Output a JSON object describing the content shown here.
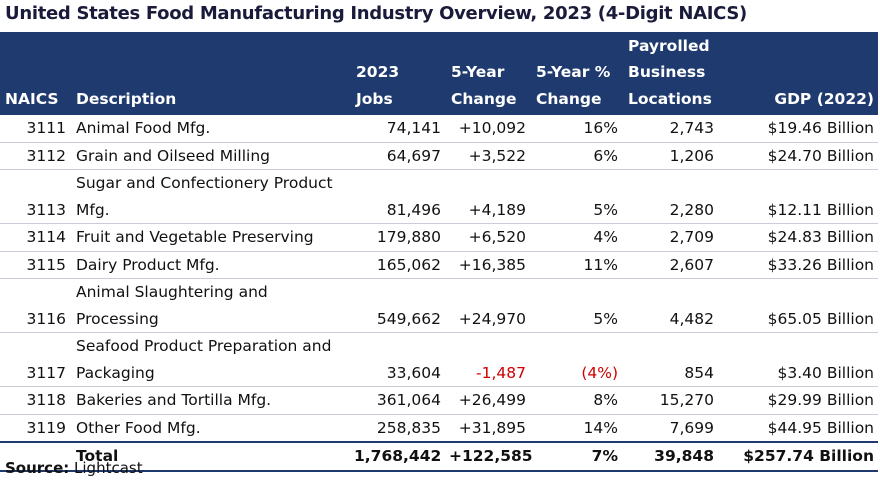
{
  "title": "United States Food Manufacturing Industry Overview, 2023 (4-Digit NAICS)",
  "table": {
    "columns": [
      "NAICS",
      "Description",
      "2023 Jobs",
      "5-Year Change",
      "5-Year % Change",
      "Payrolled Business Locations",
      "GDP (2022)"
    ],
    "rows": [
      [
        "3111",
        "Animal Food Mfg.",
        "74,141",
        "+10,092",
        "16%",
        "2,743",
        "$19.46 Billion"
      ],
      [
        "3112",
        "Grain and Oilseed Milling",
        "64,697",
        "+3,522",
        "6%",
        "1,206",
        "$24.70 Billion"
      ],
      [
        "3113",
        "Sugar and Confectionery Product Mfg.",
        "81,496",
        "+4,189",
        "5%",
        "2,280",
        "$12.11 Billion"
      ],
      [
        "3114",
        "Fruit and Vegetable Preserving",
        "179,880",
        "+6,520",
        "4%",
        "2,709",
        "$24.83 Billion"
      ],
      [
        "3115",
        "Dairy Product Mfg.",
        "165,062",
        "+16,385",
        "11%",
        "2,607",
        "$33.26 Billion"
      ],
      [
        "3116",
        "Animal Slaughtering and Processing",
        "549,662",
        "+24,970",
        "5%",
        "4,482",
        "$65.05 Billion"
      ],
      [
        "3117",
        "Seafood Product Preparation and Packaging",
        "33,604",
        "-1,487",
        "(4%)",
        "854",
        "$3.40 Billion"
      ],
      [
        "3118",
        "Bakeries and Tortilla Mfg.",
        "361,064",
        "+26,499",
        "8%",
        "15,270",
        "$29.99 Billion"
      ],
      [
        "3119",
        "Other Food Mfg.",
        "258,835",
        "+31,895",
        "14%",
        "7,699",
        "$44.95 Billion"
      ]
    ],
    "total": [
      "",
      "Total",
      "1,768,442",
      "+122,585",
      "7%",
      "39,848",
      "$257.74 Billion"
    ]
  },
  "source": {
    "label": "Source:",
    "text": "Lightcast"
  }
}
